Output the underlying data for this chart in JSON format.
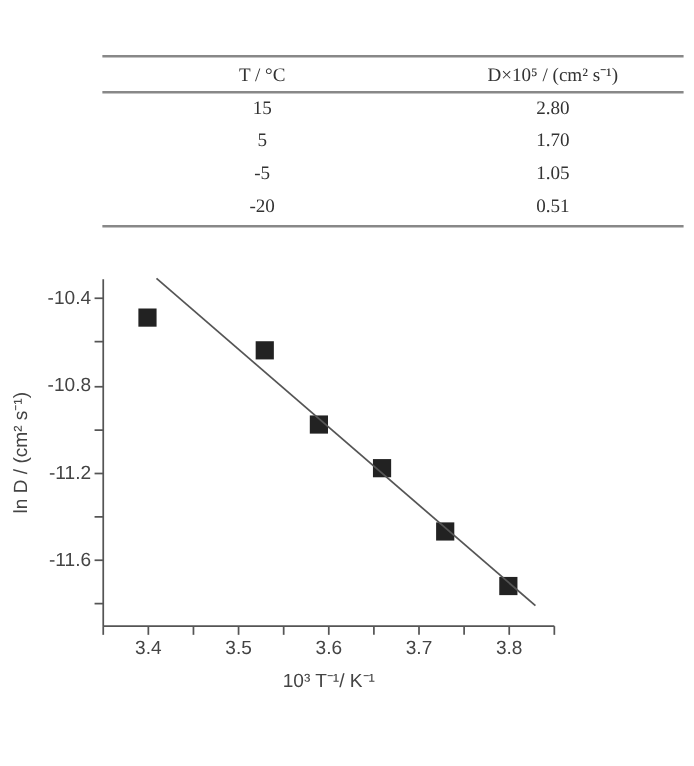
{
  "chart_data": [
    {
      "type": "other",
      "annotations": [
        "T / °C",
        "D×10⁵ / (cm² s⁻¹)",
        "15",
        "2.80",
        "5",
        "1.70",
        "-5",
        "1.05",
        "-20",
        "0.51"
      ]
    },
    {
      "type": "scatter",
      "xlabel": "10³ T⁻¹/ K⁻¹",
      "ylabel": "ln D / (cm² s⁻¹)",
      "grid": false,
      "xlim": [
        3.35,
        3.85
      ],
      "ylim": [
        -11.9,
        -10.31
      ],
      "xticks": [
        {
          "value": 3.35,
          "label": null
        },
        3.4,
        {
          "value": 3.45,
          "label": null
        },
        3.5,
        {
          "value": 3.55,
          "label": null
        },
        3.6,
        {
          "value": 3.65,
          "label": null
        },
        3.7,
        {
          "value": 3.75,
          "label": null
        },
        3.8,
        {
          "value": 3.85,
          "label": null
        }
      ],
      "yticks": [
        -10.4,
        {
          "value": -10.6,
          "label": null
        },
        -10.8,
        {
          "value": -11.0,
          "label": null
        },
        -11.2,
        {
          "value": -11.4,
          "label": null
        },
        -11.6,
        {
          "value": -11.8,
          "label": null
        }
      ],
      "series": [
        {
          "type": "scatter",
          "marker": "square",
          "color": "#222222",
          "x": [
            3.4,
            3.53,
            3.59,
            3.66,
            3.73,
            3.8
          ],
          "values": [
            -10.49,
            -10.64,
            -10.98,
            -11.18,
            -11.47,
            -11.72
          ]
        },
        {
          "type": "line",
          "marker": "none",
          "color": "#555555",
          "x": [
            3.41,
            3.83
          ],
          "values": [
            -10.31,
            -11.81
          ]
        }
      ]
    }
  ]
}
